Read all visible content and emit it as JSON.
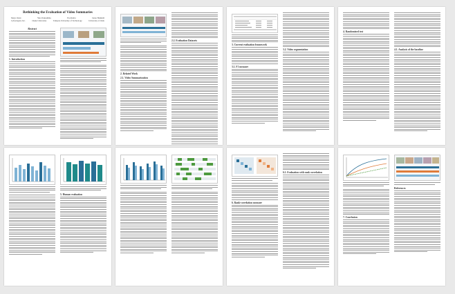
{
  "paper": {
    "title": "Rethinking the Evaluation of Video Summaries",
    "authors": [
      "Mayu Otani",
      "Yuta Nakashima",
      "Esa Rahtu",
      "Janne Heikkilä"
    ],
    "affiliations": [
      "CyberAgent, Inc.",
      "Osaka University",
      "Tampere University of Technology",
      "University of Oulu"
    ],
    "abstract_heading": "Abstract",
    "sections": {
      "intro": "1. Introduction",
      "related": "2. Related Work",
      "video_summarization": "2.1. Video Summarization",
      "datasets": "2.2. Evaluation Datasets",
      "current_eval": "3. Current evaluation framework",
      "f1": "3.1. F1 measure",
      "segmentation": "3.2. Video segmentation",
      "randomized": "4. Randomized test",
      "analysis": "4.1. Analysis of the baseline",
      "human": "5. Human evaluation",
      "rank_corr": "6. Rank-correlation measure",
      "alt": "6.1. Evaluation with rank correlation",
      "conclusion": "7. Conclusion",
      "references": "References"
    }
  },
  "colors": {
    "primary": "#2a6f97",
    "secondary": "#7fb3d5",
    "teal": "#1f8a8a",
    "accent": "#e07b39",
    "green": "#4e9a3f"
  }
}
